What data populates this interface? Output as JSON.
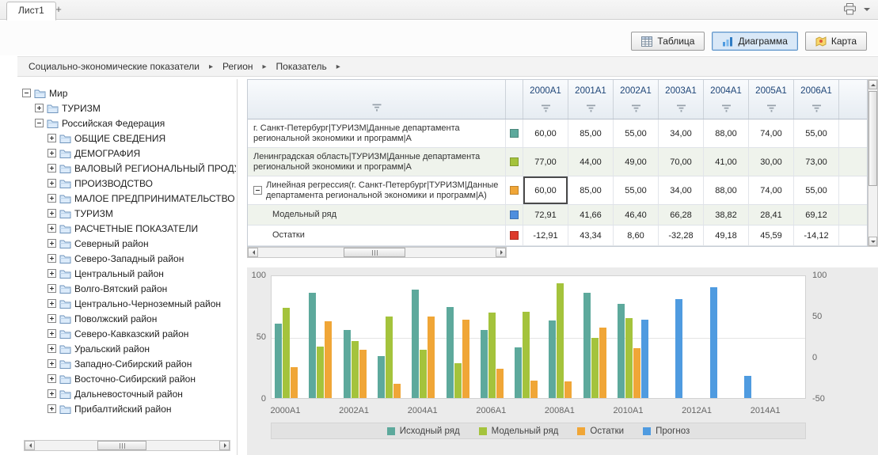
{
  "tabs": {
    "sheet": "Лист1",
    "add": "+"
  },
  "toolbar": {
    "buttons": [
      {
        "id": "table",
        "label": "Таблица",
        "active": false
      },
      {
        "id": "chart",
        "label": "Диаграмма",
        "active": true
      },
      {
        "id": "map",
        "label": "Карта",
        "active": false
      }
    ]
  },
  "breadcrumb": {
    "items": [
      "Социально-экономические показатели",
      "Регион",
      "Показатель"
    ],
    "separator": "▸"
  },
  "tree": {
    "items": [
      {
        "label": "Мир",
        "level": 0,
        "expander": "minus"
      },
      {
        "label": "ТУРИЗМ",
        "level": 1,
        "expander": "plus"
      },
      {
        "label": "Российская Федерация",
        "level": 1,
        "expander": "minus"
      },
      {
        "label": "ОБЩИЕ СВЕДЕНИЯ",
        "level": 2,
        "expander": "plus"
      },
      {
        "label": "ДЕМОГРАФИЯ",
        "level": 2,
        "expander": "plus"
      },
      {
        "label": "ВАЛОВЫЙ РЕГИОНАЛЬНЫЙ ПРОДУКТ",
        "level": 2,
        "expander": "plus"
      },
      {
        "label": "ПРОИЗВОДСТВО",
        "level": 2,
        "expander": "plus"
      },
      {
        "label": "МАЛОЕ ПРЕДПРИНИМАТЕЛЬСТВО",
        "level": 2,
        "expander": "plus"
      },
      {
        "label": "ТУРИЗМ",
        "level": 2,
        "expander": "plus"
      },
      {
        "label": "РАСЧЕТНЫЕ ПОКАЗАТЕЛИ",
        "level": 2,
        "expander": "plus"
      },
      {
        "label": "Северный район",
        "level": 2,
        "expander": "plus"
      },
      {
        "label": "Северо-Западный район",
        "level": 2,
        "expander": "plus"
      },
      {
        "label": "Центральный район",
        "level": 2,
        "expander": "plus"
      },
      {
        "label": "Волго-Вятский район",
        "level": 2,
        "expander": "plus"
      },
      {
        "label": "Центрально-Черноземный район",
        "level": 2,
        "expander": "plus"
      },
      {
        "label": "Поволжский район",
        "level": 2,
        "expander": "plus"
      },
      {
        "label": "Северо-Кавказский район",
        "level": 2,
        "expander": "plus"
      },
      {
        "label": "Уральский район",
        "level": 2,
        "expander": "plus"
      },
      {
        "label": "Западно-Сибирский район",
        "level": 2,
        "expander": "plus"
      },
      {
        "label": "Восточно-Сибирский район",
        "level": 2,
        "expander": "plus"
      },
      {
        "label": "Дальневосточный район",
        "level": 2,
        "expander": "plus"
      },
      {
        "label": "Прибалтийский район",
        "level": 2,
        "expander": "plus"
      }
    ]
  },
  "table": {
    "columns": [
      "2000A1",
      "2001A1",
      "2002A1",
      "2003A1",
      "2004A1",
      "2005A1",
      "2006A1"
    ],
    "rows": [
      {
        "name": "г. Санкт-Петербург|ТУРИЗМ|Данные департамента региональной экономики и программ|А",
        "color": "#5da99c",
        "level": 0,
        "expander": null,
        "values": [
          "60,00",
          "85,00",
          "55,00",
          "34,00",
          "88,00",
          "74,00",
          "55,00"
        ]
      },
      {
        "name": "Ленинградская область|ТУРИЗМ|Данные департамента региональной экономики и программ|А",
        "color": "#a4c33c",
        "level": 0,
        "expander": null,
        "values": [
          "77,00",
          "44,00",
          "49,00",
          "70,00",
          "41,00",
          "30,00",
          "73,00"
        ]
      },
      {
        "name": "Линейная регрессия(г. Санкт-Петербург|ТУРИЗМ|Данные департамента региональной экономики и программ|А)",
        "color": "#f0a637",
        "level": 0,
        "expander": "minus",
        "selected_cell": 0,
        "values": [
          "60,00",
          "85,00",
          "55,00",
          "34,00",
          "88,00",
          "74,00",
          "55,00"
        ]
      },
      {
        "name": "Модельный ряд",
        "color": "#4f8fde",
        "level": 1,
        "expander": null,
        "values": [
          "72,91",
          "41,66",
          "46,40",
          "66,28",
          "38,82",
          "28,41",
          "69,12"
        ]
      },
      {
        "name": "Остатки",
        "color": "#dd3a2b",
        "level": 1,
        "expander": null,
        "values": [
          "-12,91",
          "43,34",
          "8,60",
          "-32,28",
          "49,18",
          "45,59",
          "-14,12"
        ]
      }
    ]
  },
  "chart_data": {
    "type": "bar",
    "categories": [
      "2000A1",
      "2001A1",
      "2002A1",
      "2003A1",
      "2004A1",
      "2005A1",
      "2006A1",
      "2007A1",
      "2008A1",
      "2009A1",
      "2010A1",
      "2011A1",
      "2012A1",
      "2013A1",
      "2014A1"
    ],
    "x_tick_labels": [
      "2000A1",
      "2002A1",
      "2004A1",
      "2006A1",
      "2008A1",
      "2010A1",
      "2012A1",
      "2014A1"
    ],
    "left_axis": {
      "min": 0,
      "max": 100,
      "ticks": [
        100,
        50,
        0
      ]
    },
    "right_axis": {
      "min": -50,
      "max": 100,
      "ticks": [
        100,
        50,
        0,
        -50
      ]
    },
    "legend_position": "bottom",
    "series": [
      {
        "id": "source",
        "name": "Исходный ряд",
        "color": "#5da99c",
        "axis": "left",
        "values": [
          60,
          85,
          55,
          34,
          88,
          74,
          55,
          41,
          63,
          85,
          76,
          null,
          null,
          null,
          null
        ]
      },
      {
        "id": "model",
        "name": "Модельный ряд",
        "color": "#a4c33c",
        "axis": "left",
        "values": [
          72.91,
          41.66,
          46.4,
          66.28,
          38.82,
          28.41,
          69.12,
          70,
          93,
          49,
          65,
          null,
          null,
          null,
          null
        ]
      },
      {
        "id": "residuals",
        "name": "Остатки",
        "color": "#f0a637",
        "axis": "right",
        "values": [
          -12.91,
          43.34,
          8.6,
          -32.28,
          49.18,
          45.59,
          -14.12,
          -29,
          -30,
          36,
          11,
          null,
          null,
          null,
          null
        ]
      },
      {
        "id": "forecast",
        "name": "Прогноз",
        "color": "#4f9be0",
        "axis": "right",
        "values": [
          null,
          null,
          null,
          null,
          null,
          null,
          null,
          null,
          null,
          null,
          45,
          70,
          85,
          -23,
          null
        ]
      }
    ]
  },
  "colors": {
    "header_text": "#1d4477",
    "row_alt_bg": "#eff3ec",
    "active_button_bg": "#d9e8f7",
    "active_button_border": "#5b93c8"
  }
}
